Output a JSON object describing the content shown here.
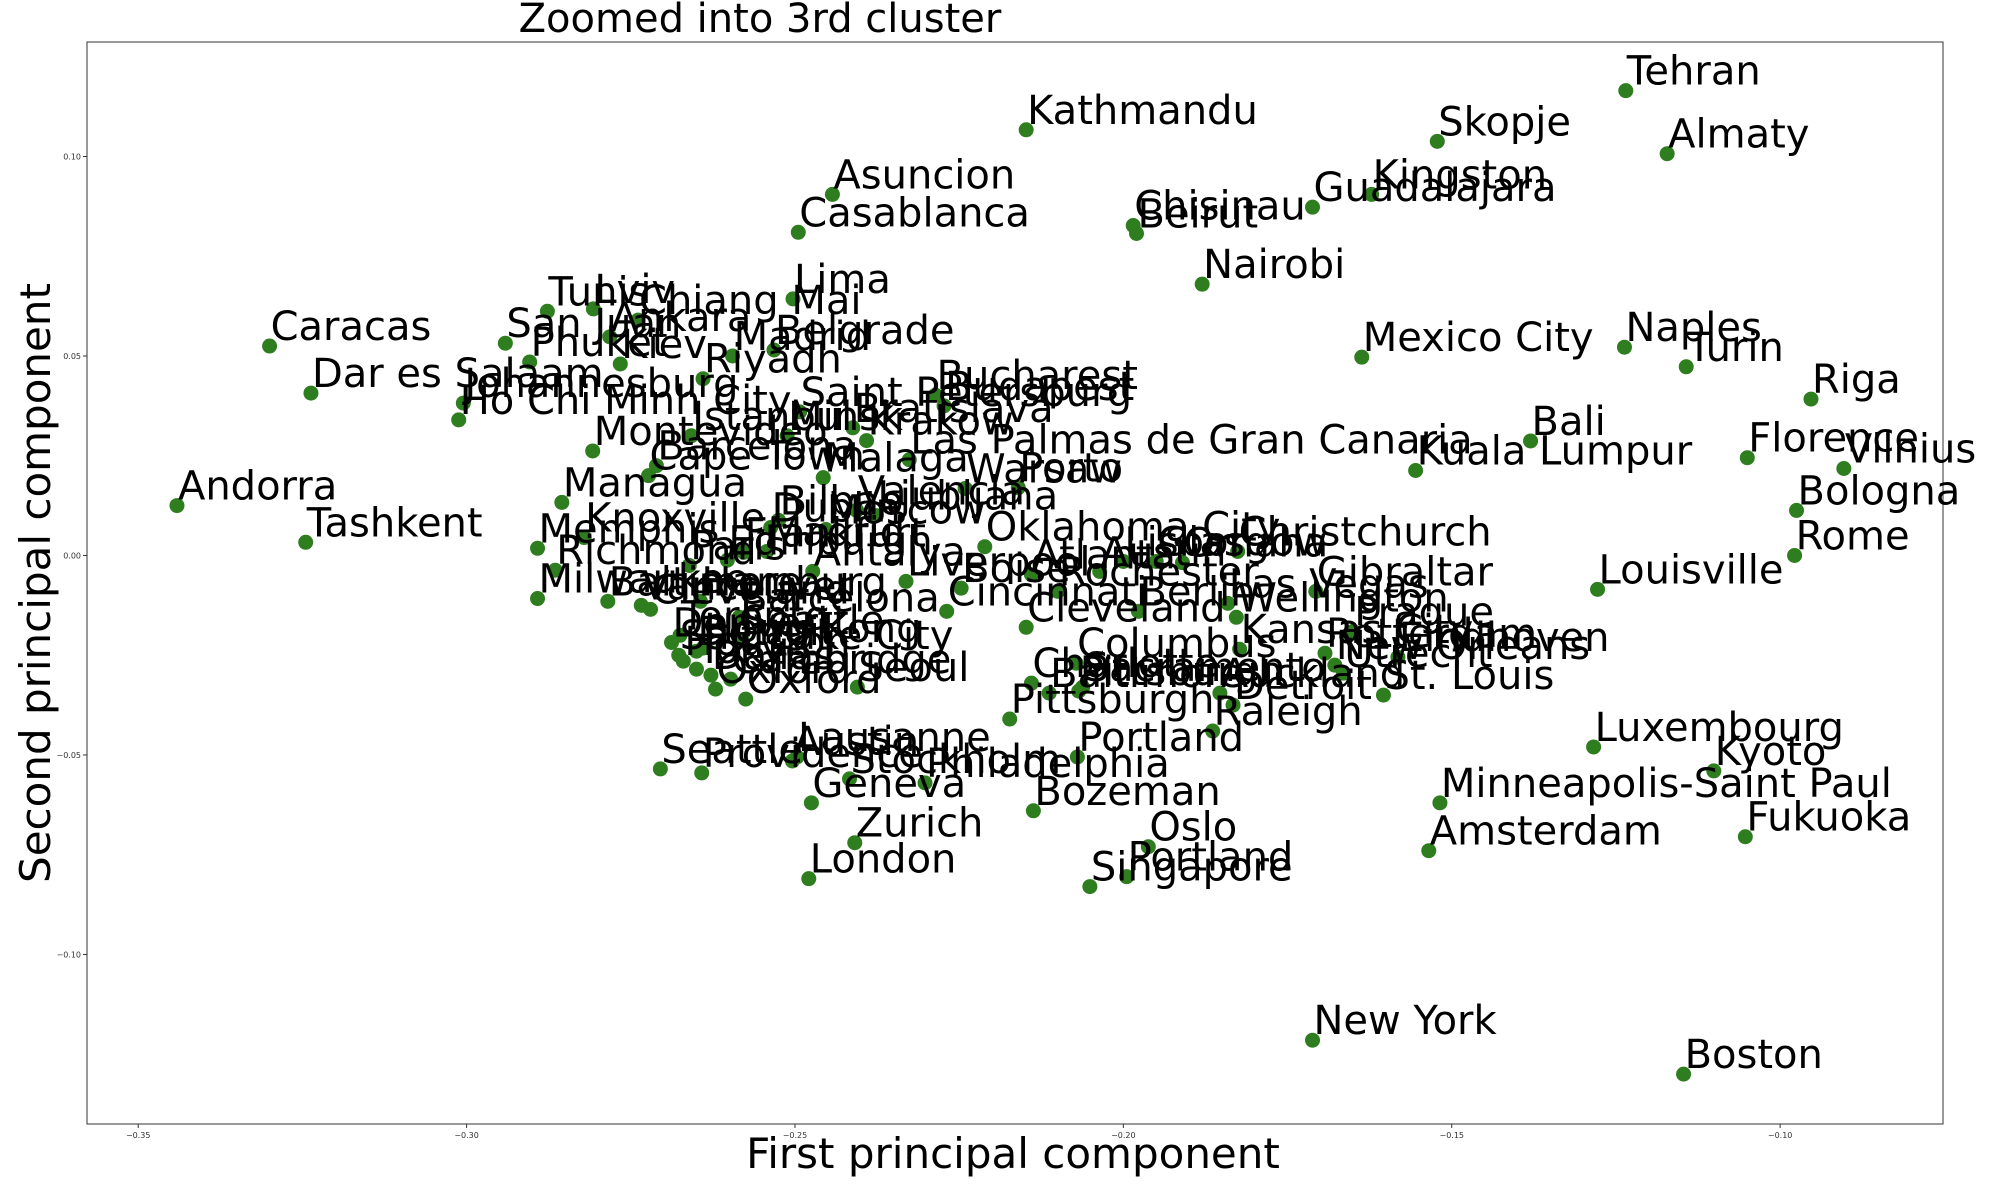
{
  "chart_data": {
    "type": "scatter",
    "title": "Zoomed into 3rd cluster",
    "xlabel": "First principal component",
    "ylabel": "Second principal component",
    "xlim": [
      -0.3578,
      -0.0752
    ],
    "ylim": [
      -0.1425,
      0.1287
    ],
    "xticks": [
      -0.35,
      -0.3,
      -0.25,
      -0.2,
      -0.15,
      -0.1
    ],
    "xtick_labels": [
      "−0.35",
      "−0.30",
      "−0.25",
      "−0.20",
      "−0.15",
      "−0.10"
    ],
    "yticks": [
      0.1,
      0.05,
      0.0,
      -0.05,
      -0.1
    ],
    "ytick_labels": [
      "0.10",
      "0.05",
      "0.00",
      "−0.05",
      "−0.10"
    ],
    "grid": false,
    "legend": "none",
    "marker_color": "#2e7d1e",
    "points": [
      {
        "label": "Tehran",
        "x": -0.1235,
        "y": 0.1165
      },
      {
        "label": "Kathmandu",
        "x": -0.2148,
        "y": 0.1067
      },
      {
        "label": "Skopje",
        "x": -0.1522,
        "y": 0.1038
      },
      {
        "label": "Almaty",
        "x": -0.1172,
        "y": 0.1007
      },
      {
        "label": "Asuncion",
        "x": -0.2443,
        "y": 0.0905
      },
      {
        "label": "Kingston",
        "x": -0.1622,
        "y": 0.0905
      },
      {
        "label": "Guadalajara",
        "x": -0.1712,
        "y": 0.0873
      },
      {
        "label": "Chisinau",
        "x": -0.1985,
        "y": 0.0827
      },
      {
        "label": "Beirut",
        "x": -0.198,
        "y": 0.0807
      },
      {
        "label": "Casablanca",
        "x": -0.2495,
        "y": 0.081
      },
      {
        "label": "Nairobi",
        "x": -0.188,
        "y": 0.068
      },
      {
        "label": "Lima",
        "x": -0.2503,
        "y": 0.0643
      },
      {
        "label": "Tunis",
        "x": -0.2877,
        "y": 0.0612
      },
      {
        "label": "Lviv",
        "x": -0.2807,
        "y": 0.0618
      },
      {
        "label": "Chiang Mai",
        "x": -0.2739,
        "y": 0.059
      },
      {
        "label": "Ankara",
        "x": -0.2782,
        "y": 0.0548
      },
      {
        "label": "San Juan",
        "x": -0.2941,
        "y": 0.0532
      },
      {
        "label": "Caracas",
        "x": -0.33,
        "y": 0.0525
      },
      {
        "label": "Naples",
        "x": -0.1237,
        "y": 0.0522
      },
      {
        "label": "Belgrade",
        "x": -0.2532,
        "y": 0.0515
      },
      {
        "label": "Madrid",
        "x": -0.2595,
        "y": 0.05
      },
      {
        "label": "Mexico City",
        "x": -0.1637,
        "y": 0.0497
      },
      {
        "label": "Phuket",
        "x": -0.2904,
        "y": 0.0485
      },
      {
        "label": "Kiev",
        "x": -0.2766,
        "y": 0.048
      },
      {
        "label": "Turin",
        "x": -0.1143,
        "y": 0.0473
      },
      {
        "label": "Riyadh",
        "x": -0.264,
        "y": 0.0443
      },
      {
        "label": "Dar es Salaam",
        "x": -0.3237,
        "y": 0.0407
      },
      {
        "label": "Bucharest",
        "x": -0.2286,
        "y": 0.0402
      },
      {
        "label": "Budapest",
        "x": -0.2273,
        "y": 0.0375
      },
      {
        "label": "Riga",
        "x": -0.0953,
        "y": 0.0392
      },
      {
        "label": "Johannesburg",
        "x": -0.3005,
        "y": 0.0382
      },
      {
        "label": "Saint Petersburg",
        "x": -0.2493,
        "y": 0.036
      },
      {
        "label": "Ho Chi Minh City",
        "x": -0.3012,
        "y": 0.034
      },
      {
        "label": "Bratislava",
        "x": -0.2412,
        "y": 0.032
      },
      {
        "label": "Istanbul",
        "x": -0.2658,
        "y": 0.03
      },
      {
        "label": "Minsk",
        "x": -0.2512,
        "y": 0.03
      },
      {
        "label": "Krakow",
        "x": -0.2391,
        "y": 0.0288
      },
      {
        "label": "Bali",
        "x": -0.138,
        "y": 0.0287
      },
      {
        "label": "Montevideo",
        "x": -0.2808,
        "y": 0.0262
      },
      {
        "label": "Florence",
        "x": -0.105,
        "y": 0.0245
      },
      {
        "label": "Las Palmas de Gran Canaria",
        "x": -0.2326,
        "y": 0.024
      },
      {
        "label": "Barcelona",
        "x": -0.2711,
        "y": 0.0225
      },
      {
        "label": "Vilnius",
        "x": -0.0903,
        "y": 0.0218
      },
      {
        "label": "Kuala Lumpur",
        "x": -0.1555,
        "y": 0.0213
      },
      {
        "label": "Cape Town",
        "x": -0.2723,
        "y": 0.02
      },
      {
        "label": "Malaga",
        "x": -0.2457,
        "y": 0.0195
      },
      {
        "label": "Warsaw",
        "x": -0.2241,
        "y": 0.0168
      },
      {
        "label": "Porto",
        "x": -0.216,
        "y": 0.017
      },
      {
        "label": "Managua",
        "x": -0.2855,
        "y": 0.0133
      },
      {
        "label": "Andorra",
        "x": -0.3441,
        "y": 0.0125
      },
      {
        "label": "Valencia",
        "x": -0.2406,
        "y": 0.0113
      },
      {
        "label": "Ljubljana",
        "x": -0.2376,
        "y": 0.01
      },
      {
        "label": "Bologna",
        "x": -0.0975,
        "y": 0.0113
      },
      {
        "label": "Bilbao",
        "x": -0.2525,
        "y": 0.0088
      },
      {
        "label": "Dublin",
        "x": -0.2537,
        "y": 0.007
      },
      {
        "label": "Moscow",
        "x": -0.2453,
        "y": 0.0065
      },
      {
        "label": "Knoxville",
        "x": -0.2821,
        "y": 0.0045
      },
      {
        "label": "Tashkent",
        "x": -0.3245,
        "y": 0.0033
      },
      {
        "label": "Memphis",
        "x": -0.2892,
        "y": 0.0018
      },
      {
        "label": "Oklahoma City",
        "x": -0.2211,
        "y": 0.0022
      },
      {
        "label": "Christchurch",
        "x": -0.1826,
        "y": 0.001
      },
      {
        "label": "Rome",
        "x": -0.0978,
        "y": 0.0
      },
      {
        "label": "Frankfurt",
        "x": -0.2578,
        "y": 0.0008
      },
      {
        "label": "Madrid",
        "x": -0.2543,
        "y": 0.001
      },
      {
        "label": "Edinburgh",
        "x": -0.2603,
        "y": -0.0012
      },
      {
        "label": "Lisbon",
        "x": -0.2,
        "y": -0.0015
      },
      {
        "label": "Glasgow",
        "x": -0.195,
        "y": -0.0015
      },
      {
        "label": "Omaha",
        "x": -0.191,
        "y": -0.0018
      },
      {
        "label": "Richmond",
        "x": -0.2865,
        "y": -0.0037
      },
      {
        "label": "Paris",
        "x": -0.2661,
        "y": -0.0025
      },
      {
        "label": "Antalya",
        "x": -0.2473,
        "y": -0.004
      },
      {
        "label": "Austin",
        "x": -0.2036,
        "y": -0.004
      },
      {
        "label": "Atlanta",
        "x": -0.214,
        "y": -0.0048
      },
      {
        "label": "Liverpool",
        "x": -0.2331,
        "y": -0.0065
      },
      {
        "label": "Louisville",
        "x": -0.1278,
        "y": -0.0085
      },
      {
        "label": "Boise",
        "x": -0.2247,
        "y": -0.0082
      },
      {
        "label": "Rochester",
        "x": -0.21,
        "y": -0.009
      },
      {
        "label": "Gibraltar",
        "x": -0.1707,
        "y": -0.009
      },
      {
        "label": "Milwaukee",
        "x": -0.2892,
        "y": -0.0108
      },
      {
        "label": "Baltimore",
        "x": -0.2785,
        "y": -0.0115
      },
      {
        "label": "Hamburg",
        "x": -0.2644,
        "y": -0.0115
      },
      {
        "label": "Vancouver",
        "x": -0.2734,
        "y": -0.0125
      },
      {
        "label": "Cleveland",
        "x": -0.272,
        "y": -0.0135
      },
      {
        "label": "Las Vegas",
        "x": -0.1841,
        "y": -0.012
      },
      {
        "label": "Cincinnati",
        "x": -0.2269,
        "y": -0.014
      },
      {
        "label": "Barcelona",
        "x": -0.2585,
        "y": -0.0155
      },
      {
        "label": "Berlin",
        "x": -0.1977,
        "y": -0.014
      },
      {
        "label": "Wellington",
        "x": -0.1828,
        "y": -0.0155
      },
      {
        "label": "Cleveland",
        "x": -0.2148,
        "y": -0.018
      },
      {
        "label": "Prague",
        "x": -0.165,
        "y": -0.019
      },
      {
        "label": "Toronto",
        "x": -0.2675,
        "y": -0.02
      },
      {
        "label": "Seattle",
        "x": -0.2581,
        "y": -0.0212
      },
      {
        "label": "Denver",
        "x": -0.2688,
        "y": -0.0218
      },
      {
        "label": "Hong Kong",
        "x": -0.264,
        "y": -0.0232
      },
      {
        "label": "Detroit",
        "x": -0.265,
        "y": -0.024
      },
      {
        "label": "Kansas City",
        "x": -0.1823,
        "y": -0.0235
      },
      {
        "label": "Rotterdam",
        "x": -0.1693,
        "y": -0.0245
      },
      {
        "label": "Eindhoven",
        "x": -0.1582,
        "y": -0.0255
      },
      {
        "label": "Salt Lake City",
        "x": -0.2677,
        "y": -0.025
      },
      {
        "label": "New Orleans",
        "x": -0.1678,
        "y": -0.0275
      },
      {
        "label": "Houston",
        "x": -0.267,
        "y": -0.0265
      },
      {
        "label": "Columbus",
        "x": -0.2072,
        "y": -0.027
      },
      {
        "label": "Utrecht",
        "x": -0.1665,
        "y": -0.0295
      },
      {
        "label": "Tokyo",
        "x": -0.265,
        "y": -0.0285
      },
      {
        "label": "Dallas",
        "x": -0.2628,
        "y": -0.03
      },
      {
        "label": "Charlotte",
        "x": -0.214,
        "y": -0.032
      },
      {
        "label": "Cambridge",
        "x": -0.2598,
        "y": -0.031
      },
      {
        "label": "Sacramento",
        "x": -0.2062,
        "y": -0.033
      },
      {
        "label": "Seoul",
        "x": -0.2405,
        "y": -0.033
      },
      {
        "label": "Oxford",
        "x": -0.2621,
        "y": -0.0335
      },
      {
        "label": "Pittsburgh",
        "x": -0.2068,
        "y": -0.034
      },
      {
        "label": "Baltimore",
        "x": -0.2113,
        "y": -0.0345
      },
      {
        "label": "Auckland",
        "x": -0.1853,
        "y": -0.0345
      },
      {
        "label": "St. Louis",
        "x": -0.1604,
        "y": -0.035
      },
      {
        "label": "Oxford",
        "x": -0.2575,
        "y": -0.036
      },
      {
        "label": "Detroit",
        "x": -0.1833,
        "y": -0.0375
      },
      {
        "label": "Pittsburgh",
        "x": -0.2173,
        "y": -0.041
      },
      {
        "label": "Raleigh",
        "x": -0.1864,
        "y": -0.044
      },
      {
        "label": "Luxembourg",
        "x": -0.1284,
        "y": -0.048
      },
      {
        "label": "Lausanne",
        "x": -0.2497,
        "y": -0.0505
      },
      {
        "label": "Austin",
        "x": -0.2504,
        "y": -0.0515
      },
      {
        "label": "Portland",
        "x": -0.207,
        "y": -0.0505
      },
      {
        "label": "Kyoto",
        "x": -0.1101,
        "y": -0.054
      },
      {
        "label": "Seattle",
        "x": -0.2705,
        "y": -0.0535
      },
      {
        "label": "Providence",
        "x": -0.2642,
        "y": -0.0545
      },
      {
        "label": "Philadelphia",
        "x": -0.2302,
        "y": -0.057
      },
      {
        "label": "Stockholm",
        "x": -0.2417,
        "y": -0.056
      },
      {
        "label": "Minneapolis-Saint Paul",
        "x": -0.1518,
        "y": -0.062
      },
      {
        "label": "Geneva",
        "x": -0.2475,
        "y": -0.062
      },
      {
        "label": "Bozeman",
        "x": -0.2137,
        "y": -0.064
      },
      {
        "label": "Fukuoka",
        "x": -0.1053,
        "y": -0.0705
      },
      {
        "label": "Zurich",
        "x": -0.2409,
        "y": -0.072
      },
      {
        "label": "Oslo",
        "x": -0.1962,
        "y": -0.073
      },
      {
        "label": "Amsterdam",
        "x": -0.1535,
        "y": -0.074
      },
      {
        "label": "Portland",
        "x": -0.1995,
        "y": -0.0805
      },
      {
        "label": "London",
        "x": -0.2479,
        "y": -0.081
      },
      {
        "label": "Singapore",
        "x": -0.2051,
        "y": -0.083
      },
      {
        "label": "New York",
        "x": -0.1712,
        "y": -0.1215
      },
      {
        "label": "Boston",
        "x": -0.1147,
        "y": -0.13
      }
    ]
  }
}
